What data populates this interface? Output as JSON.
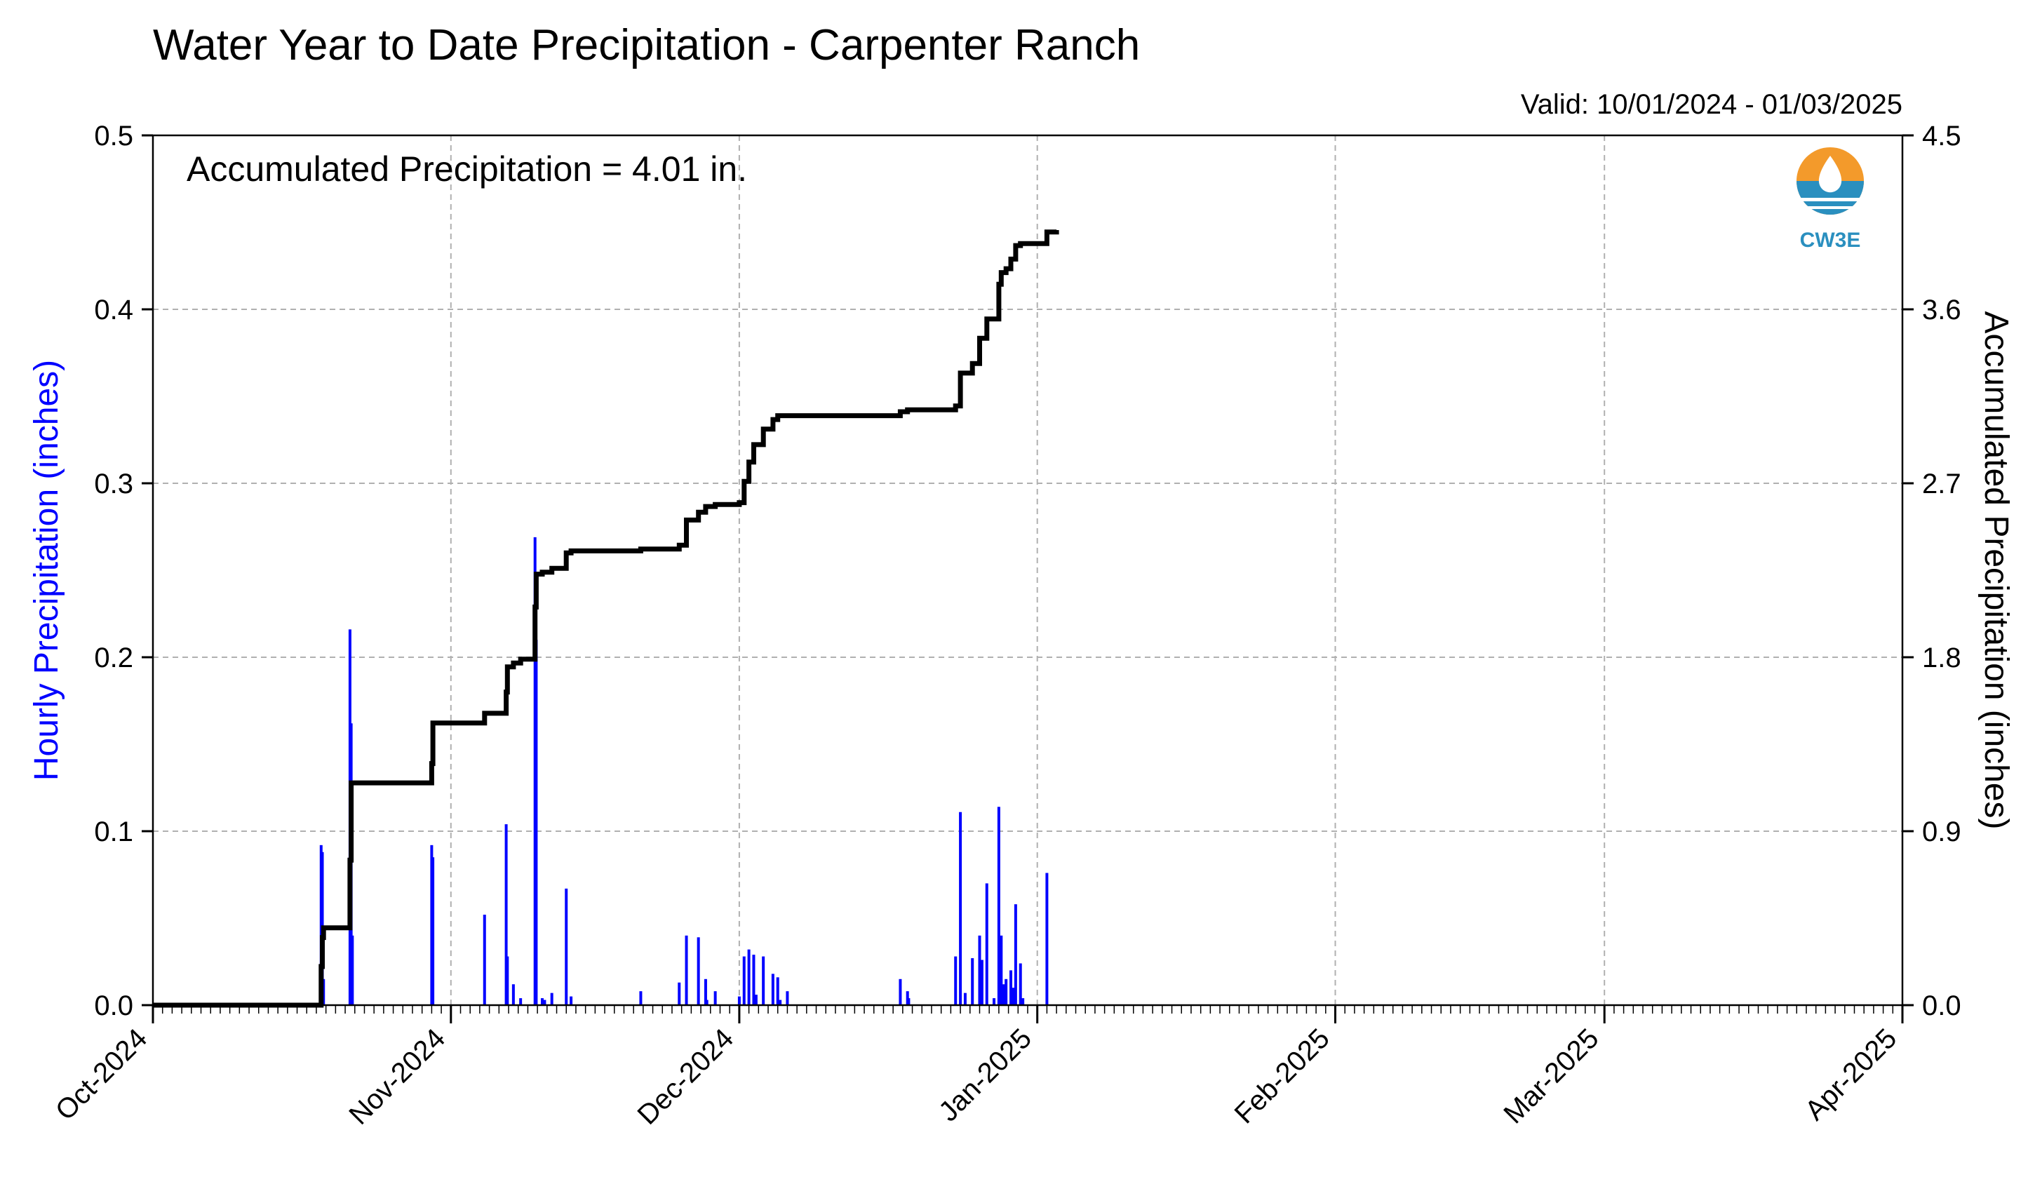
{
  "chart_data": {
    "type": "bar",
    "title": "Water Year to Date Precipitation - Carpenter Ranch",
    "valid_range": "Valid: 10/01/2024 - 01/03/2025",
    "annotation": "Accumulated Precipitation = 4.01 in.",
    "logo_text": "CW3E",
    "left_axis": {
      "label": "Hourly Precipitation (inches)",
      "ylim": [
        0,
        0.5
      ],
      "ticks": [
        "0.0",
        "0.1",
        "0.2",
        "0.3",
        "0.4",
        "0.5"
      ],
      "color": "#0000ff"
    },
    "right_axis": {
      "label": "Accumulated Precipitation (inches)",
      "ylim": [
        0,
        4.5
      ],
      "ticks": [
        "0.0",
        "0.9",
        "1.8",
        "2.7",
        "3.6",
        "4.5"
      ]
    },
    "x_axis": {
      "range": [
        "2024-10-01",
        "2025-04-01"
      ],
      "tick_labels": [
        "Oct-2024",
        "Nov-2024",
        "Dec-2024",
        "Jan-2025",
        "Feb-2025",
        "Mar-2025",
        "Apr-2025"
      ],
      "tick_dates": [
        "2024-10-01",
        "2024-11-01",
        "2024-12-01",
        "2025-01-01",
        "2025-02-01",
        "2025-03-01",
        "2025-04-01"
      ]
    },
    "grid": true,
    "series": [
      {
        "name": "Hourly Precipitation",
        "type": "bar",
        "color": "#0000ff",
        "x": [
          "2024-10-18T12:00",
          "2024-10-18T15:00",
          "2024-10-18T18:00",
          "2024-10-21T12:00",
          "2024-10-21T15:00",
          "2024-10-21T18:00",
          "2024-10-30T00:00",
          "2024-10-30T03:00",
          "2024-11-04T12:00",
          "2024-11-06T18:00",
          "2024-11-06T21:00",
          "2024-11-07T12:00",
          "2024-11-08T06:00",
          "2024-11-09T18:00",
          "2024-11-09T21:00",
          "2024-11-10T12:00",
          "2024-11-10T18:00",
          "2024-11-11T12:00",
          "2024-11-13T00:00",
          "2024-11-13T12:00",
          "2024-11-20T18:00",
          "2024-11-24T18:00",
          "2024-11-25T12:00",
          "2024-11-26T18:00",
          "2024-11-27T12:00",
          "2024-11-27T15:00",
          "2024-11-28T12:00",
          "2024-12-01T00:00",
          "2024-12-01T12:00",
          "2024-12-02T00:00",
          "2024-12-02T12:00",
          "2024-12-02T18:00",
          "2024-12-03T12:00",
          "2024-12-04T12:00",
          "2024-12-05T00:00",
          "2024-12-05T06:00",
          "2024-12-06T00:00",
          "2024-12-17T18:00",
          "2024-12-18T12:00",
          "2024-12-18T15:00",
          "2024-12-23T12:00",
          "2024-12-24T00:00",
          "2024-12-24T12:00",
          "2024-12-25T06:00",
          "2024-12-26T00:00",
          "2024-12-26T06:00",
          "2024-12-26T18:00",
          "2024-12-27T12:00",
          "2024-12-28T00:00",
          "2024-12-28T06:00",
          "2024-12-28T12:00",
          "2024-12-28T18:00",
          "2024-12-29T06:00",
          "2024-12-29T12:00",
          "2024-12-29T18:00",
          "2024-12-30T06:00",
          "2024-12-30T12:00",
          "2025-01-02T00:00"
        ],
        "values": [
          0.092,
          0.088,
          0.015,
          0.216,
          0.162,
          0.04,
          0.092,
          0.085,
          0.052,
          0.104,
          0.028,
          0.012,
          0.004,
          0.269,
          0.21,
          0.004,
          0.003,
          0.007,
          0.067,
          0.005,
          0.008,
          0.013,
          0.04,
          0.039,
          0.015,
          0.003,
          0.008,
          0.005,
          0.028,
          0.032,
          0.029,
          0.006,
          0.028,
          0.018,
          0.016,
          0.003,
          0.008,
          0.015,
          0.008,
          0.004,
          0.028,
          0.111,
          0.007,
          0.027,
          0.04,
          0.026,
          0.07,
          0.004,
          0.114,
          0.04,
          0.012,
          0.015,
          0.02,
          0.01,
          0.058,
          0.024,
          0.004,
          0.076
        ]
      },
      {
        "name": "Accumulated Precipitation",
        "type": "line",
        "color": "#000000",
        "x": [
          "2024-10-01T00:00",
          "2024-10-18T12:00",
          "2024-10-18T15:00",
          "2024-10-18T18:00",
          "2024-10-21T12:00",
          "2024-10-21T15:00",
          "2024-10-30T00:00",
          "2024-10-30T03:00",
          "2024-11-04T12:00",
          "2024-11-06T18:00",
          "2024-11-06T21:00",
          "2024-11-07T12:00",
          "2024-11-08T06:00",
          "2024-11-09T18:00",
          "2024-11-09T21:00",
          "2024-11-10T12:00",
          "2024-11-11T12:00",
          "2024-11-13T00:00",
          "2024-11-13T12:00",
          "2024-11-20T18:00",
          "2024-11-24T18:00",
          "2024-11-25T12:00",
          "2024-11-26T18:00",
          "2024-11-27T12:00",
          "2024-11-28T12:00",
          "2024-12-01T00:00",
          "2024-12-01T12:00",
          "2024-12-02T00:00",
          "2024-12-02T12:00",
          "2024-12-03T12:00",
          "2024-12-04T12:00",
          "2024-12-05T00:00",
          "2024-12-06T00:00",
          "2024-12-17T18:00",
          "2024-12-18T12:00",
          "2024-12-23T12:00",
          "2024-12-24T00:00",
          "2024-12-25T06:00",
          "2024-12-26T00:00",
          "2024-12-26T18:00",
          "2024-12-28T00:00",
          "2024-12-28T06:00",
          "2024-12-28T18:00",
          "2024-12-29T06:00",
          "2024-12-29T18:00",
          "2024-12-30T06:00",
          "2025-01-02T00:00",
          "2025-01-03T00:00"
        ],
        "values": [
          0.0,
          0.2,
          0.35,
          0.4,
          0.75,
          1.15,
          1.25,
          1.46,
          1.51,
          1.62,
          1.75,
          1.77,
          1.79,
          2.06,
          2.23,
          2.24,
          2.26,
          2.34,
          2.35,
          2.36,
          2.38,
          2.51,
          2.55,
          2.58,
          2.59,
          2.6,
          2.71,
          2.81,
          2.9,
          2.98,
          3.03,
          3.05,
          3.05,
          3.07,
          3.08,
          3.1,
          3.27,
          3.32,
          3.45,
          3.55,
          3.73,
          3.79,
          3.81,
          3.86,
          3.93,
          3.94,
          4.0,
          4.01
        ]
      }
    ]
  }
}
